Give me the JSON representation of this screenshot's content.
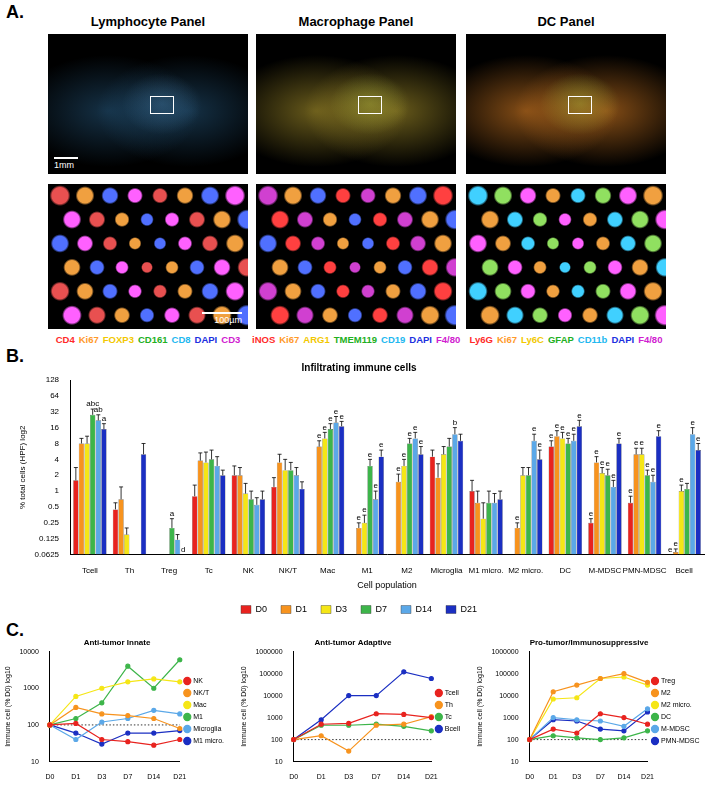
{
  "panel_labels": [
    "A.",
    "B.",
    "C."
  ],
  "panel_a": {
    "scale_bars": [
      "1mm",
      "100µm"
    ],
    "panels": [
      {
        "title": "Lymphocyte Panel",
        "markers": [
          {
            "label": "CD4",
            "color": "#ff2a2a"
          },
          {
            "label": "Ki67",
            "color": "#ff9a2a"
          },
          {
            "label": "FOXP3",
            "color": "#f2c800"
          },
          {
            "label": "CD161",
            "color": "#22b022"
          },
          {
            "label": "CD8",
            "color": "#22b8f0"
          },
          {
            "label": "DAPI",
            "color": "#2030e0"
          },
          {
            "label": "CD3",
            "color": "#d020d0"
          }
        ]
      },
      {
        "title": "Macrophage Panel",
        "markers": [
          {
            "label": "iNOS",
            "color": "#ff2a2a"
          },
          {
            "label": "Ki67",
            "color": "#ff9a2a"
          },
          {
            "label": "ARG1",
            "color": "#f2c800"
          },
          {
            "label": "TMEM119",
            "color": "#22b022"
          },
          {
            "label": "CD19",
            "color": "#22b8f0"
          },
          {
            "label": "DAPI",
            "color": "#2030e0"
          },
          {
            "label": "F4/80",
            "color": "#d020d0"
          }
        ]
      },
      {
        "title": "DC Panel",
        "markers": [
          {
            "label": "Ly6G",
            "color": "#ff2a2a"
          },
          {
            "label": "Ki67",
            "color": "#ff9a2a"
          },
          {
            "label": "Ly6C",
            "color": "#f2c800"
          },
          {
            "label": "GFAP",
            "color": "#22b022"
          },
          {
            "label": "CD11b",
            "color": "#22b8f0"
          },
          {
            "label": "DAPI",
            "color": "#2030e0"
          },
          {
            "label": "F4/80",
            "color": "#d020d0"
          }
        ]
      }
    ]
  },
  "chart_data": [
    {
      "type": "bar",
      "title": "Infiltrating immune cells",
      "x_label": "Cell population",
      "y_label": "% total cells (HPF) log2",
      "categories": [
        "Tcell",
        "Th",
        "Treg",
        "Tc",
        "NK",
        "NK/T",
        "Mac",
        "M1",
        "M2",
        "Microglia",
        "M1 micro.",
        "M2 micro.",
        "DC",
        "M-MDSC",
        "PMN-MDSC",
        "Bcell"
      ],
      "series": [
        {
          "name": "D0",
          "color": "#e8231f",
          "values": [
            1.6,
            0.45,
            null,
            0.8,
            2,
            1.2,
            null,
            null,
            null,
            4.5,
            1,
            null,
            7,
            0.25,
            0.6,
            null
          ],
          "errors": [
            1.2,
            0.15,
            null,
            0.5,
            1,
            0.6,
            null,
            null,
            null,
            1.5,
            0.6,
            null,
            2,
            0.05,
            0.2,
            null
          ],
          "annotations": [
            null,
            null,
            null,
            null,
            null,
            null,
            null,
            null,
            null,
            null,
            null,
            null,
            "e",
            "e",
            "e",
            "e"
          ]
        },
        {
          "name": "D1",
          "color": "#f7931e",
          "values": [
            8,
            0.7,
            null,
            3.8,
            2,
            3.5,
            7,
            0.2,
            1.5,
            1.8,
            0.6,
            0.2,
            11,
            3.5,
            5,
            0.07
          ],
          "errors": [
            2,
            0.5,
            null,
            1.5,
            0.8,
            1.5,
            2,
            0.05,
            0.6,
            1.5,
            0.4,
            0.05,
            3,
            1,
            1.5,
            0.01
          ],
          "annotations": [
            null,
            null,
            null,
            null,
            null,
            null,
            "e",
            "e",
            "e",
            null,
            null,
            "e",
            "e",
            "e",
            "e",
            "e"
          ]
        },
        {
          "name": "D3",
          "color": "#f5e616",
          "values": [
            8,
            0.15,
            null,
            3.5,
            0.9,
            2.5,
            10,
            0.25,
            3,
            5,
            0.3,
            2,
            10,
            2.2,
            5,
            1
          ],
          "errors": [
            3,
            0.05,
            null,
            2,
            0.5,
            1.5,
            3,
            0.1,
            1,
            2,
            0.3,
            0.8,
            3,
            0.6,
            1.5,
            0.3
          ],
          "annotations": [
            null,
            null,
            null,
            null,
            null,
            null,
            "e",
            "e",
            "e",
            null,
            null,
            null,
            "e",
            "e",
            "e",
            "e"
          ]
        },
        {
          "name": "D7",
          "color": "#3db54a",
          "values": [
            28,
            null,
            0.2,
            4,
            0.7,
            2.5,
            15,
            3,
            8,
            7,
            0.6,
            2,
            8,
            2,
            2,
            1.1
          ],
          "errors": [
            8,
            null,
            0.1,
            2,
            0.3,
            1,
            4,
            1,
            2,
            3,
            0.4,
            0.8,
            2,
            0.6,
            0.5,
            0.3
          ],
          "annotations": [
            "abc",
            null,
            "a",
            null,
            null,
            null,
            "e",
            "e",
            "e",
            null,
            null,
            null,
            "e",
            "e",
            "e",
            null
          ]
        },
        {
          "name": "D14",
          "color": "#5ba8e8",
          "values": [
            22,
            null,
            0.12,
            3,
            0.55,
            2,
            20,
            0.7,
            10,
            12,
            0.6,
            9,
            9,
            1.2,
            1.5,
            12
          ],
          "errors": [
            6,
            null,
            0.03,
            1.5,
            0.2,
            0.8,
            6,
            0.3,
            3,
            4,
            0.3,
            3,
            3,
            0.4,
            0.5,
            4
          ],
          "annotations": [
            "ab",
            null,
            null,
            null,
            null,
            null,
            "e",
            "e",
            "e",
            "b",
            null,
            "e",
            "e",
            "e",
            "e",
            "e"
          ]
        },
        {
          "name": "D21",
          "color": "#1b2fc2",
          "values": [
            15,
            5,
            null,
            2,
            0.7,
            1.1,
            17,
            4.5,
            5,
            9,
            0.7,
            4,
            17,
            8,
            11,
            6
          ],
          "errors": [
            4,
            3,
            null,
            0.5,
            0.3,
            0.4,
            4,
            1.5,
            2,
            3,
            0.3,
            2,
            5,
            2,
            3,
            2
          ],
          "annotations": [
            "a",
            null,
            "d",
            null,
            null,
            null,
            "e",
            "e",
            "e",
            null,
            null,
            "e",
            "e",
            "e",
            "e",
            "e"
          ]
        }
      ],
      "ylim": [
        0.0625,
        128
      ],
      "yticks": [
        0.0625,
        0.125,
        0.25,
        0.5,
        1,
        2,
        4,
        8,
        16,
        32,
        64,
        128
      ],
      "log": "y",
      "grid": false,
      "legend": "bottom"
    },
    {
      "type": "line",
      "title": "Anti-tumor Innate",
      "y_label": "Immune cell (% D0) log10",
      "categories": [
        "D0",
        "D1",
        "D3",
        "D7",
        "D14",
        "D21"
      ],
      "series": [
        {
          "name": "NK",
          "color": "#e8231f",
          "values": [
            100,
            110,
            40,
            35,
            28,
            40
          ]
        },
        {
          "name": "NK/T",
          "color": "#f7931e",
          "values": [
            100,
            300,
            200,
            180,
            150,
            80
          ]
        },
        {
          "name": "Mac",
          "color": "#f5e616",
          "values": [
            100,
            600,
            1000,
            1500,
            1800,
            1500
          ]
        },
        {
          "name": "M1",
          "color": "#3db54a",
          "values": [
            100,
            150,
            400,
            4000,
            1000,
            6000
          ]
        },
        {
          "name": "Microglia",
          "color": "#5ba8e8",
          "values": [
            100,
            40,
            120,
            150,
            250,
            200
          ]
        },
        {
          "name": "M1 micro.",
          "color": "#1b2fc2",
          "values": [
            100,
            60,
            30,
            60,
            60,
            70
          ]
        }
      ],
      "ylim": [
        10,
        10000
      ],
      "yticks": [
        10,
        100,
        1000,
        10000
      ],
      "reference_line": 100,
      "log": "y",
      "grid": false,
      "legend": "right",
      "marker": "circle"
    },
    {
      "type": "line",
      "title": "Anti-tumor Adaptive",
      "y_label": "Immune cell (% D0) log10",
      "categories": [
        "D0",
        "D1",
        "D3",
        "D7",
        "D14",
        "D21"
      ],
      "series": [
        {
          "name": "Tcell",
          "color": "#e8231f",
          "values": [
            100,
            500,
            550,
            1500,
            1400,
            1000
          ]
        },
        {
          "name": "Th",
          "color": "#f7931e",
          "values": [
            100,
            150,
            30,
            450,
            500,
            1100
          ]
        },
        {
          "name": "Tc",
          "color": "#3db54a",
          "values": [
            100,
            450,
            450,
            500,
            400,
            250
          ]
        },
        {
          "name": "Bcell",
          "color": "#1b2fc2",
          "values": [
            100,
            800,
            10000,
            10000,
            120000,
            60000
          ]
        }
      ],
      "ylim": [
        10,
        1000000
      ],
      "yticks": [
        10,
        100,
        1000,
        10000,
        100000,
        1000000
      ],
      "reference_line": 100,
      "log": "y",
      "grid": false,
      "legend": "right",
      "marker": "circle"
    },
    {
      "type": "line",
      "title": "Pro-tumor/Immunosuppressive",
      "y_label": "Immune cell (% D0) log10",
      "categories": [
        "D0",
        "D1",
        "D3",
        "D7",
        "D14",
        "D21"
      ],
      "series": [
        {
          "name": "Treg",
          "color": "#e8231f",
          "values": [
            100,
            300,
            200,
            1500,
            1000,
            500
          ]
        },
        {
          "name": "M2",
          "color": "#f7931e",
          "values": [
            100,
            15000,
            30000,
            60000,
            100000,
            40000
          ]
        },
        {
          "name": "M2 micro.",
          "color": "#f5e616",
          "values": [
            100,
            7000,
            8000,
            60000,
            70000,
            30000
          ]
        },
        {
          "name": "DC",
          "color": "#3db54a",
          "values": [
            100,
            150,
            120,
            100,
            120,
            250
          ]
        },
        {
          "name": "M-MDSC",
          "color": "#5ba8e8",
          "values": [
            100,
            1000,
            800,
            700,
            400,
            2500
          ]
        },
        {
          "name": "PMN-MDSC",
          "color": "#1b2fc2",
          "values": [
            100,
            800,
            700,
            300,
            250,
            1800
          ]
        }
      ],
      "ylim": [
        10,
        1000000
      ],
      "yticks": [
        10,
        100,
        1000,
        10000,
        100000,
        1000000
      ],
      "reference_line": 100,
      "log": "y",
      "grid": false,
      "legend": "right",
      "marker": "circle"
    }
  ]
}
